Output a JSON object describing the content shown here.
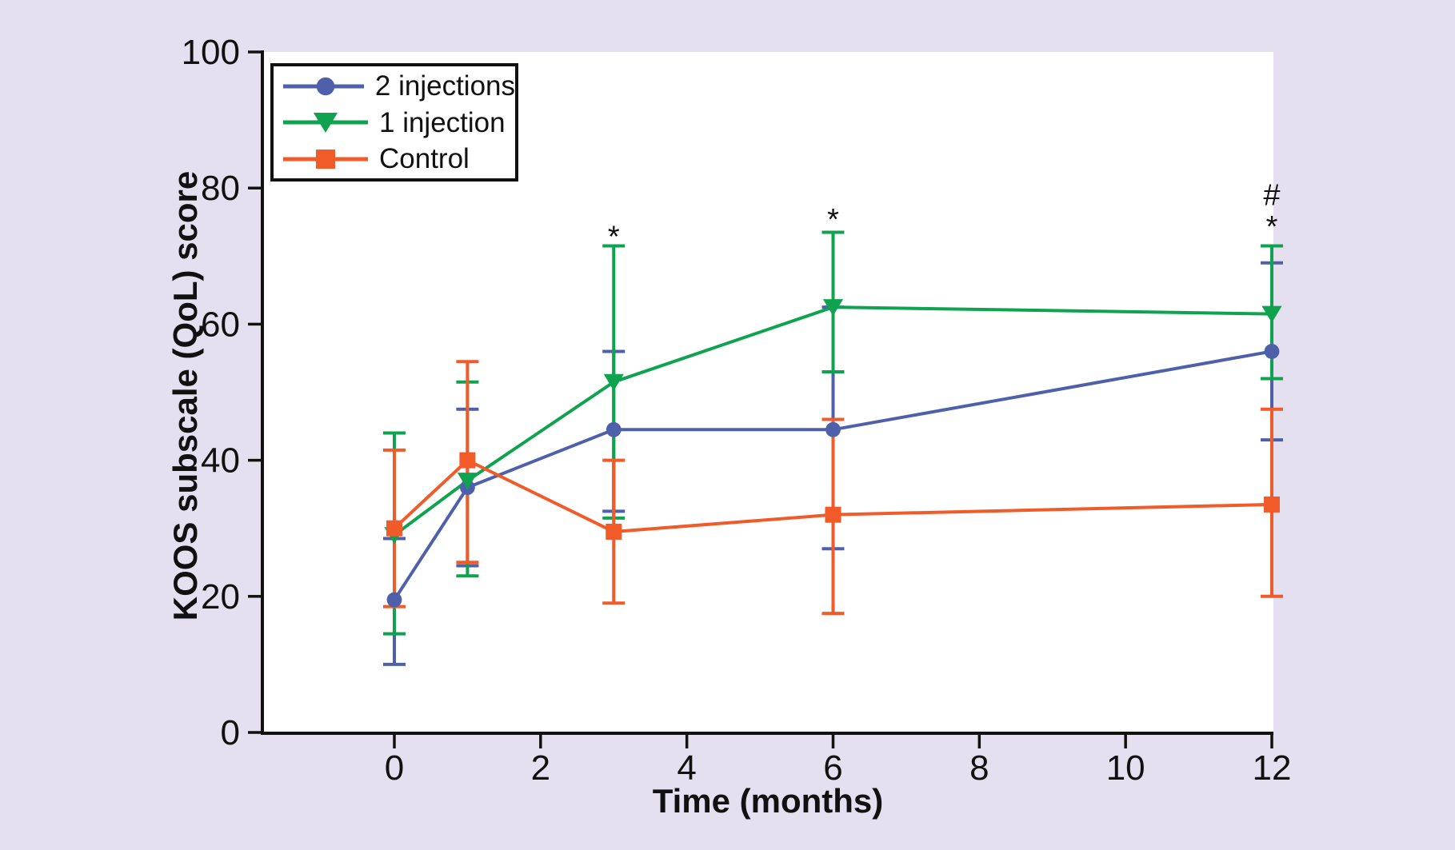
{
  "figure": {
    "background_color": "#E4E0EF",
    "plot_background": "#FFFFFF",
    "axis_color": "#111111",
    "text_color": "#111111"
  },
  "legend": {
    "position": "upper-left",
    "items": [
      {
        "label": "2 injections",
        "icon": "circle-marker-icon",
        "series_index": 0
      },
      {
        "label": "1 injection",
        "icon": "triangle-down-marker-icon",
        "series_index": 1
      },
      {
        "label": "Control",
        "icon": "square-marker-icon",
        "series_index": 2
      }
    ]
  },
  "chart_data": {
    "type": "line",
    "title": "",
    "xlabel": "Time (months)",
    "ylabel": "KOOS subscale (QoL) score",
    "x": [
      0,
      1,
      3,
      6,
      12
    ],
    "x_ticks": [
      0,
      2,
      4,
      6,
      8,
      10,
      12
    ],
    "y_ticks": [
      0,
      20,
      40,
      60,
      80,
      100
    ],
    "xlim": [
      -1.8,
      12
    ],
    "ylim": [
      0,
      100
    ],
    "grid": false,
    "error_bars": "sd",
    "series": [
      {
        "name": "2 injections",
        "marker": "circle",
        "color": "#4E60AA",
        "values": [
          19.5,
          36.0,
          44.5,
          44.5,
          56.0
        ],
        "err_low": [
          10.0,
          24.5,
          32.5,
          27.0,
          43.0
        ],
        "err_high": [
          28.5,
          47.5,
          56.0,
          62.5,
          69.0
        ]
      },
      {
        "name": "1 injection",
        "marker": "triangle-down",
        "color": "#0FA24F",
        "values": [
          29.0,
          37.0,
          51.5,
          62.5,
          61.5
        ],
        "err_low": [
          14.5,
          23.0,
          31.5,
          53.0,
          52.0
        ],
        "err_high": [
          44.0,
          51.5,
          71.5,
          73.5,
          71.5
        ]
      },
      {
        "name": "Control",
        "marker": "square",
        "color": "#F15A29",
        "values": [
          30.0,
          40.0,
          29.5,
          32.0,
          33.5
        ],
        "err_low": [
          18.5,
          25.0,
          19.0,
          17.5,
          20.0
        ],
        "err_high": [
          41.5,
          54.5,
          40.0,
          46.0,
          47.5
        ]
      }
    ],
    "annotations": [
      {
        "text": "*",
        "x": 3,
        "y": 73.5
      },
      {
        "text": "*",
        "x": 6,
        "y": 76.0
      },
      {
        "text": "#",
        "x": 12,
        "y": 79.0
      },
      {
        "text": "*",
        "x": 12,
        "y": 75.0
      }
    ]
  }
}
